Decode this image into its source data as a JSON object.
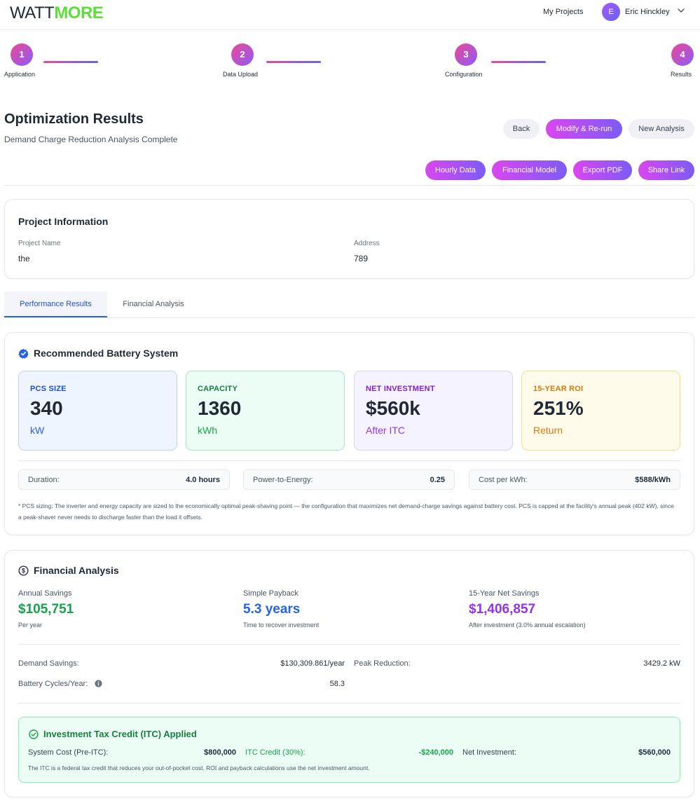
{
  "header": {
    "logo_part1": "WATT",
    "logo_part2": "MORE",
    "my_projects": "My Projects",
    "user_initial": "E",
    "user_name": "Eric Hinckley"
  },
  "stepper": {
    "steps": [
      {
        "number": "1",
        "label": "Application"
      },
      {
        "number": "2",
        "label": "Data Upload"
      },
      {
        "number": "3",
        "label": "Configuration"
      },
      {
        "number": "4",
        "label": "Results"
      }
    ]
  },
  "page": {
    "title": "Optimization Results",
    "subtitle": "Demand Charge Reduction Analysis Complete",
    "buttons": {
      "back": "Back",
      "modify": "Modify & Re-run",
      "new_analysis": "New Analysis",
      "hourly_data": "Hourly Data",
      "financial_model": "Financial Model",
      "export_pdf": "Export PDF",
      "share_link": "Share Link"
    }
  },
  "project_info": {
    "title": "Project Information",
    "name_label": "Project Name",
    "name_value": "the",
    "address_label": "Address",
    "address_value": "789"
  },
  "tabs": [
    {
      "label": "Performance Results",
      "active": true
    },
    {
      "label": "Financial Analysis",
      "active": false
    }
  ],
  "battery": {
    "title": "Recommended Battery System",
    "metrics": [
      {
        "label": "PCS SIZE",
        "value": "340",
        "unit": "kW"
      },
      {
        "label": "CAPACITY",
        "value": "1360",
        "unit": "kWh"
      },
      {
        "label": "NET INVESTMENT",
        "value": "$560k",
        "unit": "After ITC"
      },
      {
        "label": "15-YEAR ROI",
        "value": "251%",
        "unit": "Return"
      }
    ],
    "pills": [
      {
        "label": "Duration:",
        "value": "4.0 hours"
      },
      {
        "label": "Power-to-Energy:",
        "value": "0.25"
      },
      {
        "label": "Cost per kWh:",
        "value": "$588/kWh"
      }
    ],
    "note_star": "*",
    "note": " PCS sizing: The inverter and energy capacity are sized to the economically optimal peak-shaving point — the configuration that maximizes net demand-charge savings against battery cost. PCS is capped at the facility's annual peak (402 kW), since a peak-shaver never needs to discharge faster than the load it offsets."
  },
  "financial": {
    "title": "Financial Analysis",
    "kpis": [
      {
        "label": "Annual Savings",
        "value": "$105,751",
        "sub": "Per year"
      },
      {
        "label": "Simple Payback",
        "value": "5.3 years",
        "sub": "Time to recover investment"
      },
      {
        "label": "15-Year Net Savings",
        "value": "$1,406,857",
        "sub": "After investment (3.0% annual escalation)"
      }
    ],
    "rows": {
      "demand_savings_label": "Demand Savings:",
      "demand_savings_value": "$130,309.861/year",
      "peak_reduction_label": "Peak Reduction:",
      "peak_reduction_value": "3429.2 kW",
      "cycles_label": "Battery Cycles/Year:",
      "cycles_value": "58.3"
    },
    "itc": {
      "title": "Investment Tax Credit (ITC) Applied",
      "system_cost_label": "System Cost (Pre-ITC):",
      "system_cost_value": "$800,000",
      "itc_credit_label": "ITC Credit (30%):",
      "itc_credit_value": "-$240,000",
      "net_investment_label": "Net Investment:",
      "net_investment_value": "$560,000",
      "note": "The ITC is a federal tax credit that reduces your out-of-pocket cost. ROI and payback calculations use the net investment amount."
    }
  },
  "colors": {
    "accent_blue": "#2563eb",
    "accent_green": "#16a34a",
    "accent_purple": "#9333ea",
    "accent_orange": "#d97706",
    "gradient_start": "#d946ef",
    "gradient_end": "#7c5cf6"
  }
}
